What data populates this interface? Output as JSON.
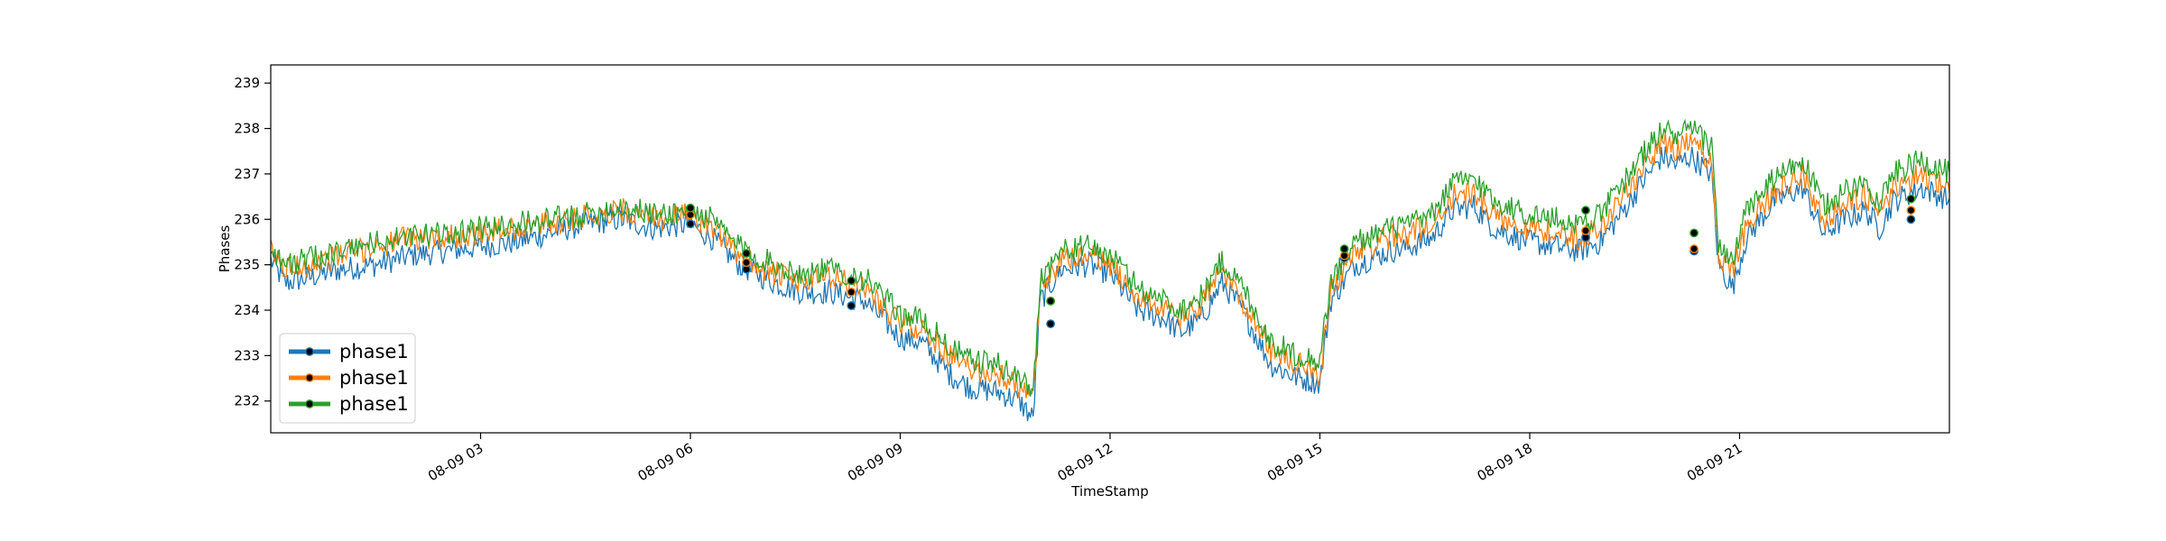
{
  "chart_data": {
    "type": "line",
    "xlabel": "TimeStamp",
    "ylabel": "Phases",
    "x_start": "08-09 00:00",
    "x_end": "08-09 23:59",
    "xlim_hours": [
      0,
      24
    ],
    "ylim": [
      231.3,
      239.4
    ],
    "x_tick_labels": [
      {
        "hour": 3,
        "label": "08-09 03"
      },
      {
        "hour": 6,
        "label": "08-09 06"
      },
      {
        "hour": 9,
        "label": "08-09 09"
      },
      {
        "hour": 12,
        "label": "08-09 12"
      },
      {
        "hour": 15,
        "label": "08-09 15"
      },
      {
        "hour": 18,
        "label": "08-09 18"
      },
      {
        "hour": 21,
        "label": "08-09 21"
      }
    ],
    "y_ticks": [
      232,
      233,
      234,
      235,
      236,
      237,
      238,
      239
    ],
    "grid": false,
    "legend_position": "lower-left",
    "series": [
      {
        "name": "phase1",
        "color": "#1f77b4",
        "points": [
          [
            0,
            235.1
          ],
          [
            0.2,
            234.6
          ],
          [
            0.5,
            234.7
          ],
          [
            1,
            234.9
          ],
          [
            1.5,
            235.0
          ],
          [
            2,
            235.2
          ],
          [
            2.5,
            235.3
          ],
          [
            3,
            235.4
          ],
          [
            3.5,
            235.5
          ],
          [
            4,
            235.7
          ],
          [
            4.5,
            235.9
          ],
          [
            5,
            236.0
          ],
          [
            5.5,
            235.8
          ],
          [
            6,
            235.9
          ],
          [
            6.3,
            235.6
          ],
          [
            6.7,
            235.0
          ],
          [
            7.2,
            234.6
          ],
          [
            7.6,
            234.4
          ],
          [
            8,
            234.4
          ],
          [
            8.5,
            234.2
          ],
          [
            9,
            233.4
          ],
          [
            9.3,
            233.3
          ],
          [
            9.7,
            232.6
          ],
          [
            10,
            232.3
          ],
          [
            10.4,
            232.2
          ],
          [
            10.7,
            232.0
          ],
          [
            10.9,
            231.6
          ],
          [
            11.0,
            234.2
          ],
          [
            11.3,
            234.9
          ],
          [
            11.7,
            235.0
          ],
          [
            12.0,
            234.8
          ],
          [
            12.4,
            234.0
          ],
          [
            12.8,
            233.8
          ],
          [
            13.0,
            233.5
          ],
          [
            13.3,
            233.8
          ],
          [
            13.6,
            234.6
          ],
          [
            13.9,
            234.0
          ],
          [
            14.1,
            233.4
          ],
          [
            14.3,
            232.8
          ],
          [
            14.7,
            232.5
          ],
          [
            15.0,
            232.4
          ],
          [
            15.15,
            234.2
          ],
          [
            15.5,
            235.0
          ],
          [
            16.0,
            235.3
          ],
          [
            16.3,
            235.4
          ],
          [
            16.6,
            235.6
          ],
          [
            16.9,
            236.2
          ],
          [
            17.2,
            236.3
          ],
          [
            17.5,
            235.8
          ],
          [
            18.0,
            235.5
          ],
          [
            18.4,
            235.4
          ],
          [
            18.7,
            235.3
          ],
          [
            19.0,
            235.5
          ],
          [
            19.3,
            236.1
          ],
          [
            19.6,
            236.8
          ],
          [
            19.9,
            237.4
          ],
          [
            20.1,
            237.2
          ],
          [
            20.3,
            237.4
          ],
          [
            20.6,
            237.0
          ],
          [
            20.7,
            235.0
          ],
          [
            20.9,
            234.5
          ],
          [
            21.1,
            235.6
          ],
          [
            21.5,
            236.4
          ],
          [
            21.9,
            236.7
          ],
          [
            22.2,
            235.7
          ],
          [
            22.5,
            236.0
          ],
          [
            22.8,
            236.2
          ],
          [
            23.0,
            235.8
          ],
          [
            23.2,
            236.4
          ],
          [
            23.6,
            236.7
          ],
          [
            23.9,
            236.5
          ],
          [
            24.0,
            236.4
          ]
        ]
      },
      {
        "name": "phase1",
        "color": "#ff7f0e",
        "points": [
          [
            0,
            235.3
          ],
          [
            0.2,
            234.9
          ],
          [
            0.5,
            235.0
          ],
          [
            1,
            235.2
          ],
          [
            1.5,
            235.4
          ],
          [
            2,
            235.6
          ],
          [
            2.5,
            235.6
          ],
          [
            3,
            235.7
          ],
          [
            3.5,
            235.8
          ],
          [
            4,
            235.9
          ],
          [
            4.5,
            236.1
          ],
          [
            5,
            236.2
          ],
          [
            5.5,
            236.0
          ],
          [
            6,
            236.1
          ],
          [
            6.3,
            235.8
          ],
          [
            6.7,
            235.2
          ],
          [
            7.2,
            234.8
          ],
          [
            7.6,
            234.6
          ],
          [
            8,
            234.7
          ],
          [
            8.5,
            234.5
          ],
          [
            9,
            233.7
          ],
          [
            9.3,
            233.6
          ],
          [
            9.7,
            233.0
          ],
          [
            10,
            232.7
          ],
          [
            10.4,
            232.6
          ],
          [
            10.7,
            232.3
          ],
          [
            10.9,
            232.0
          ],
          [
            11.0,
            234.4
          ],
          [
            11.3,
            235.1
          ],
          [
            11.7,
            235.2
          ],
          [
            12.0,
            235.0
          ],
          [
            12.4,
            234.3
          ],
          [
            12.8,
            234.0
          ],
          [
            13.0,
            233.8
          ],
          [
            13.3,
            234.1
          ],
          [
            13.6,
            234.9
          ],
          [
            13.9,
            234.2
          ],
          [
            14.1,
            233.7
          ],
          [
            14.3,
            233.1
          ],
          [
            14.7,
            232.8
          ],
          [
            15.0,
            232.6
          ],
          [
            15.15,
            234.4
          ],
          [
            15.5,
            235.3
          ],
          [
            16.0,
            235.6
          ],
          [
            16.3,
            235.7
          ],
          [
            16.6,
            235.9
          ],
          [
            16.9,
            236.5
          ],
          [
            17.2,
            236.6
          ],
          [
            17.5,
            236.1
          ],
          [
            18.0,
            235.8
          ],
          [
            18.4,
            235.7
          ],
          [
            18.7,
            235.6
          ],
          [
            19.0,
            235.8
          ],
          [
            19.3,
            236.4
          ],
          [
            19.6,
            237.1
          ],
          [
            19.9,
            237.7
          ],
          [
            20.1,
            237.5
          ],
          [
            20.3,
            237.7
          ],
          [
            20.6,
            237.3
          ],
          [
            20.7,
            235.2
          ],
          [
            20.9,
            234.8
          ],
          [
            21.1,
            235.9
          ],
          [
            21.5,
            236.6
          ],
          [
            21.9,
            237.0
          ],
          [
            22.2,
            236.0
          ],
          [
            22.5,
            236.3
          ],
          [
            22.8,
            236.5
          ],
          [
            23.0,
            236.1
          ],
          [
            23.2,
            236.7
          ],
          [
            23.6,
            237.0
          ],
          [
            23.9,
            236.8
          ],
          [
            24.0,
            236.7
          ]
        ]
      },
      {
        "name": "phase1",
        "color": "#2ca02c",
        "points": [
          [
            0,
            235.4
          ],
          [
            0.2,
            235.0
          ],
          [
            0.5,
            235.1
          ],
          [
            1,
            235.3
          ],
          [
            1.5,
            235.5
          ],
          [
            2,
            235.6
          ],
          [
            2.5,
            235.7
          ],
          [
            3,
            235.8
          ],
          [
            3.5,
            235.9
          ],
          [
            4,
            236.0
          ],
          [
            4.5,
            236.1
          ],
          [
            5,
            236.3
          ],
          [
            5.5,
            236.1
          ],
          [
            6,
            236.2
          ],
          [
            6.3,
            236.0
          ],
          [
            6.7,
            235.4
          ],
          [
            7.2,
            235.0
          ],
          [
            7.6,
            234.8
          ],
          [
            8,
            234.9
          ],
          [
            8.5,
            234.7
          ],
          [
            9,
            233.9
          ],
          [
            9.3,
            233.8
          ],
          [
            9.7,
            233.2
          ],
          [
            10,
            232.9
          ],
          [
            10.4,
            232.8
          ],
          [
            10.7,
            232.5
          ],
          [
            10.9,
            232.2
          ],
          [
            11.0,
            234.7
          ],
          [
            11.3,
            235.3
          ],
          [
            11.7,
            235.4
          ],
          [
            12.0,
            235.2
          ],
          [
            12.4,
            234.5
          ],
          [
            12.8,
            234.2
          ],
          [
            13.0,
            234.0
          ],
          [
            13.3,
            234.3
          ],
          [
            13.6,
            235.1
          ],
          [
            13.9,
            234.5
          ],
          [
            14.1,
            233.9
          ],
          [
            14.3,
            233.3
          ],
          [
            14.7,
            233.0
          ],
          [
            15.0,
            232.9
          ],
          [
            15.15,
            234.6
          ],
          [
            15.5,
            235.5
          ],
          [
            16.0,
            235.8
          ],
          [
            16.3,
            235.9
          ],
          [
            16.6,
            236.1
          ],
          [
            16.9,
            236.8
          ],
          [
            17.2,
            236.9
          ],
          [
            17.5,
            236.4
          ],
          [
            18.0,
            236.1
          ],
          [
            18.4,
            236.0
          ],
          [
            18.7,
            235.9
          ],
          [
            19.0,
            236.1
          ],
          [
            19.3,
            236.7
          ],
          [
            19.6,
            237.4
          ],
          [
            19.9,
            238.0
          ],
          [
            20.1,
            237.8
          ],
          [
            20.3,
            238.0
          ],
          [
            20.6,
            237.6
          ],
          [
            20.7,
            235.5
          ],
          [
            20.9,
            235.0
          ],
          [
            21.1,
            236.2
          ],
          [
            21.5,
            236.9
          ],
          [
            21.9,
            237.3
          ],
          [
            22.2,
            236.3
          ],
          [
            22.5,
            236.6
          ],
          [
            22.8,
            236.8
          ],
          [
            23.0,
            236.4
          ],
          [
            23.2,
            237.0
          ],
          [
            23.6,
            237.3
          ],
          [
            23.9,
            237.1
          ],
          [
            24.0,
            237.0
          ]
        ]
      }
    ],
    "event_markers": [
      {
        "hour": 6.0,
        "values": [
          235.9,
          236.1,
          236.25
        ]
      },
      {
        "hour": 6.8,
        "values": [
          234.9,
          235.05,
          235.25
        ]
      },
      {
        "hour": 8.3,
        "values": [
          234.1,
          234.4,
          234.65
        ]
      },
      {
        "hour": 11.15,
        "values": [
          233.7,
          234.2,
          234.2
        ]
      },
      {
        "hour": 15.35,
        "values": [
          235.15,
          235.2,
          235.35
        ]
      },
      {
        "hour": 18.8,
        "values": [
          235.6,
          235.75,
          236.2
        ]
      },
      {
        "hour": 20.35,
        "values": [
          235.3,
          235.35,
          235.7
        ]
      },
      {
        "hour": 23.45,
        "values": [
          236.0,
          236.2,
          236.45
        ]
      }
    ],
    "legend": [
      {
        "label": "phase1",
        "color": "#1f77b4"
      },
      {
        "label": "phase1",
        "color": "#ff7f0e"
      },
      {
        "label": "phase1",
        "color": "#2ca02c"
      }
    ]
  }
}
